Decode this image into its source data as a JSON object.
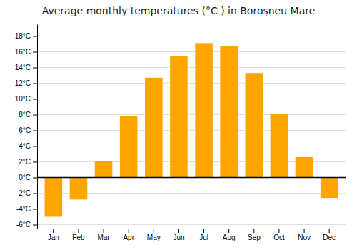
{
  "chart_data": {
    "type": "bar",
    "title": "Average monthly temperatures (°C ) in Boroşneu Mare",
    "categories": [
      "Jan",
      "Feb",
      "Mar",
      "Apr",
      "May",
      "Jun",
      "Jul",
      "Aug",
      "Sep",
      "Oct",
      "Nov",
      "Dec"
    ],
    "values": [
      -5.0,
      -2.8,
      2.1,
      7.8,
      12.7,
      15.5,
      17.1,
      16.7,
      13.3,
      8.1,
      2.6,
      -2.6
    ],
    "color": "#FFA500",
    "ylim": [
      -6.5,
      19.5
    ],
    "yticks": [
      {
        "value": -6,
        "label": "-6°C"
      },
      {
        "value": -4,
        "label": "-4°C"
      },
      {
        "value": -2,
        "label": "-2°C"
      },
      {
        "value": 0,
        "label": "0°C"
      },
      {
        "value": 2,
        "label": "2°C"
      },
      {
        "value": 4,
        "label": "4°C"
      },
      {
        "value": 6,
        "label": "6°C"
      },
      {
        "value": 8,
        "label": "8°C"
      },
      {
        "value": 10,
        "label": "10°C"
      },
      {
        "value": 12,
        "label": "12°C"
      },
      {
        "value": 14,
        "label": "14°C"
      },
      {
        "value": 16,
        "label": "16°C"
      },
      {
        "value": 18,
        "label": "18°C"
      }
    ],
    "grid": true
  }
}
